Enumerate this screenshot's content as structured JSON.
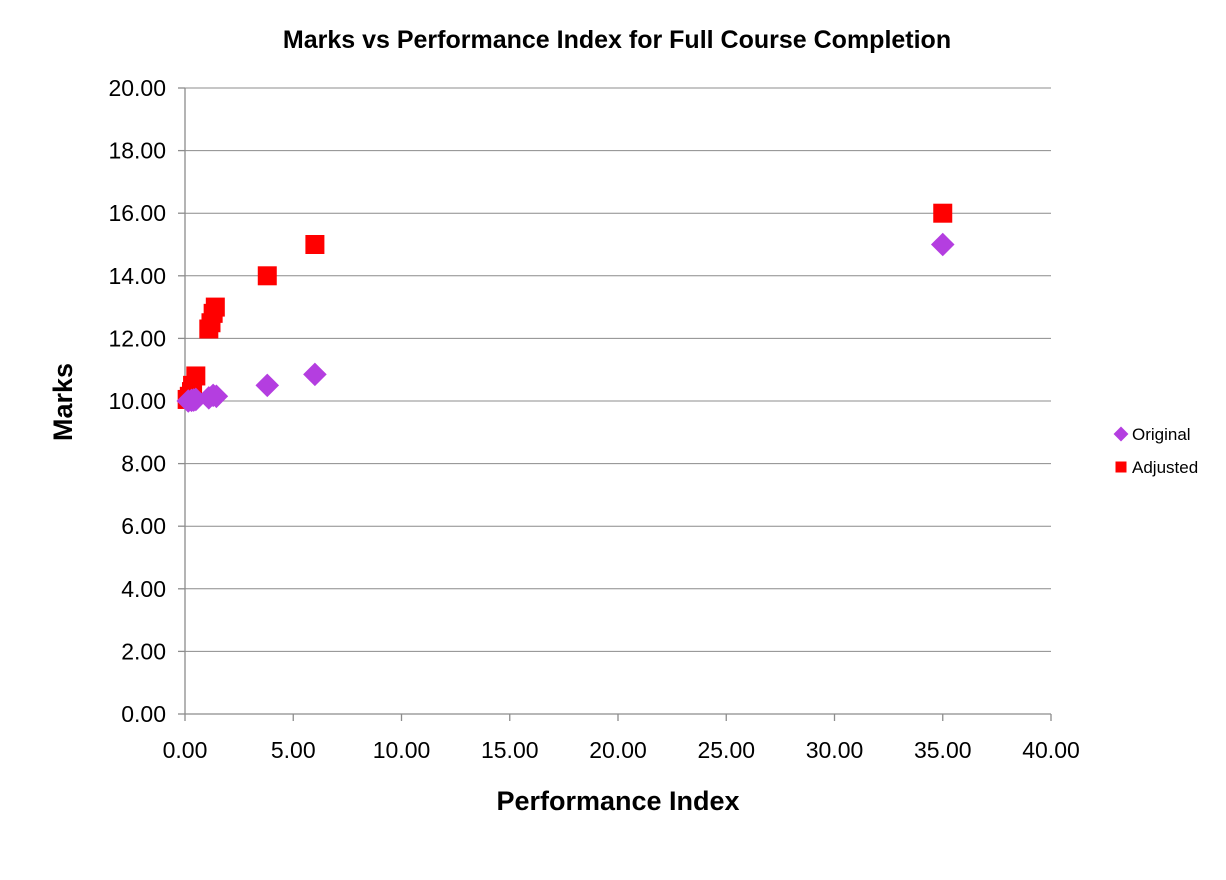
{
  "chart_data": {
    "type": "scatter",
    "title": "Marks vs Performance Index for Full Course Completion",
    "xlabel": "Performance Index",
    "ylabel": "Marks",
    "xlim": [
      0,
      40
    ],
    "ylim": [
      0,
      20
    ],
    "x_ticks": [
      "0.00",
      "5.00",
      "10.00",
      "15.00",
      "20.00",
      "25.00",
      "30.00",
      "35.00",
      "40.00"
    ],
    "y_ticks": [
      "0.00",
      "2.00",
      "4.00",
      "6.00",
      "8.00",
      "10.00",
      "12.00",
      "14.00",
      "16.00",
      "18.00",
      "20.00"
    ],
    "grid": "horizontal",
    "legend_position": "right",
    "series": [
      {
        "name": "Original",
        "marker": "diamond",
        "color": "#b43ee0",
        "points": [
          {
            "x": 0.15,
            "y": 10.0
          },
          {
            "x": 0.3,
            "y": 10.02
          },
          {
            "x": 0.4,
            "y": 10.03
          },
          {
            "x": 0.5,
            "y": 10.05
          },
          {
            "x": 1.1,
            "y": 10.1
          },
          {
            "x": 1.3,
            "y": 10.18
          },
          {
            "x": 1.45,
            "y": 10.15
          },
          {
            "x": 3.8,
            "y": 10.5
          },
          {
            "x": 6.0,
            "y": 10.85
          },
          {
            "x": 35.0,
            "y": 15.0
          }
        ]
      },
      {
        "name": "Adjusted",
        "marker": "square",
        "color": "#ff0000",
        "points": [
          {
            "x": 0.1,
            "y": 10.05
          },
          {
            "x": 0.2,
            "y": 10.15
          },
          {
            "x": 0.3,
            "y": 10.3
          },
          {
            "x": 0.35,
            "y": 10.5
          },
          {
            "x": 0.5,
            "y": 10.8
          },
          {
            "x": 1.1,
            "y": 12.3
          },
          {
            "x": 1.2,
            "y": 12.5
          },
          {
            "x": 1.3,
            "y": 12.8
          },
          {
            "x": 1.4,
            "y": 13.0
          },
          {
            "x": 3.8,
            "y": 14.0
          },
          {
            "x": 6.0,
            "y": 15.0
          },
          {
            "x": 35.0,
            "y": 16.0
          }
        ]
      }
    ]
  }
}
